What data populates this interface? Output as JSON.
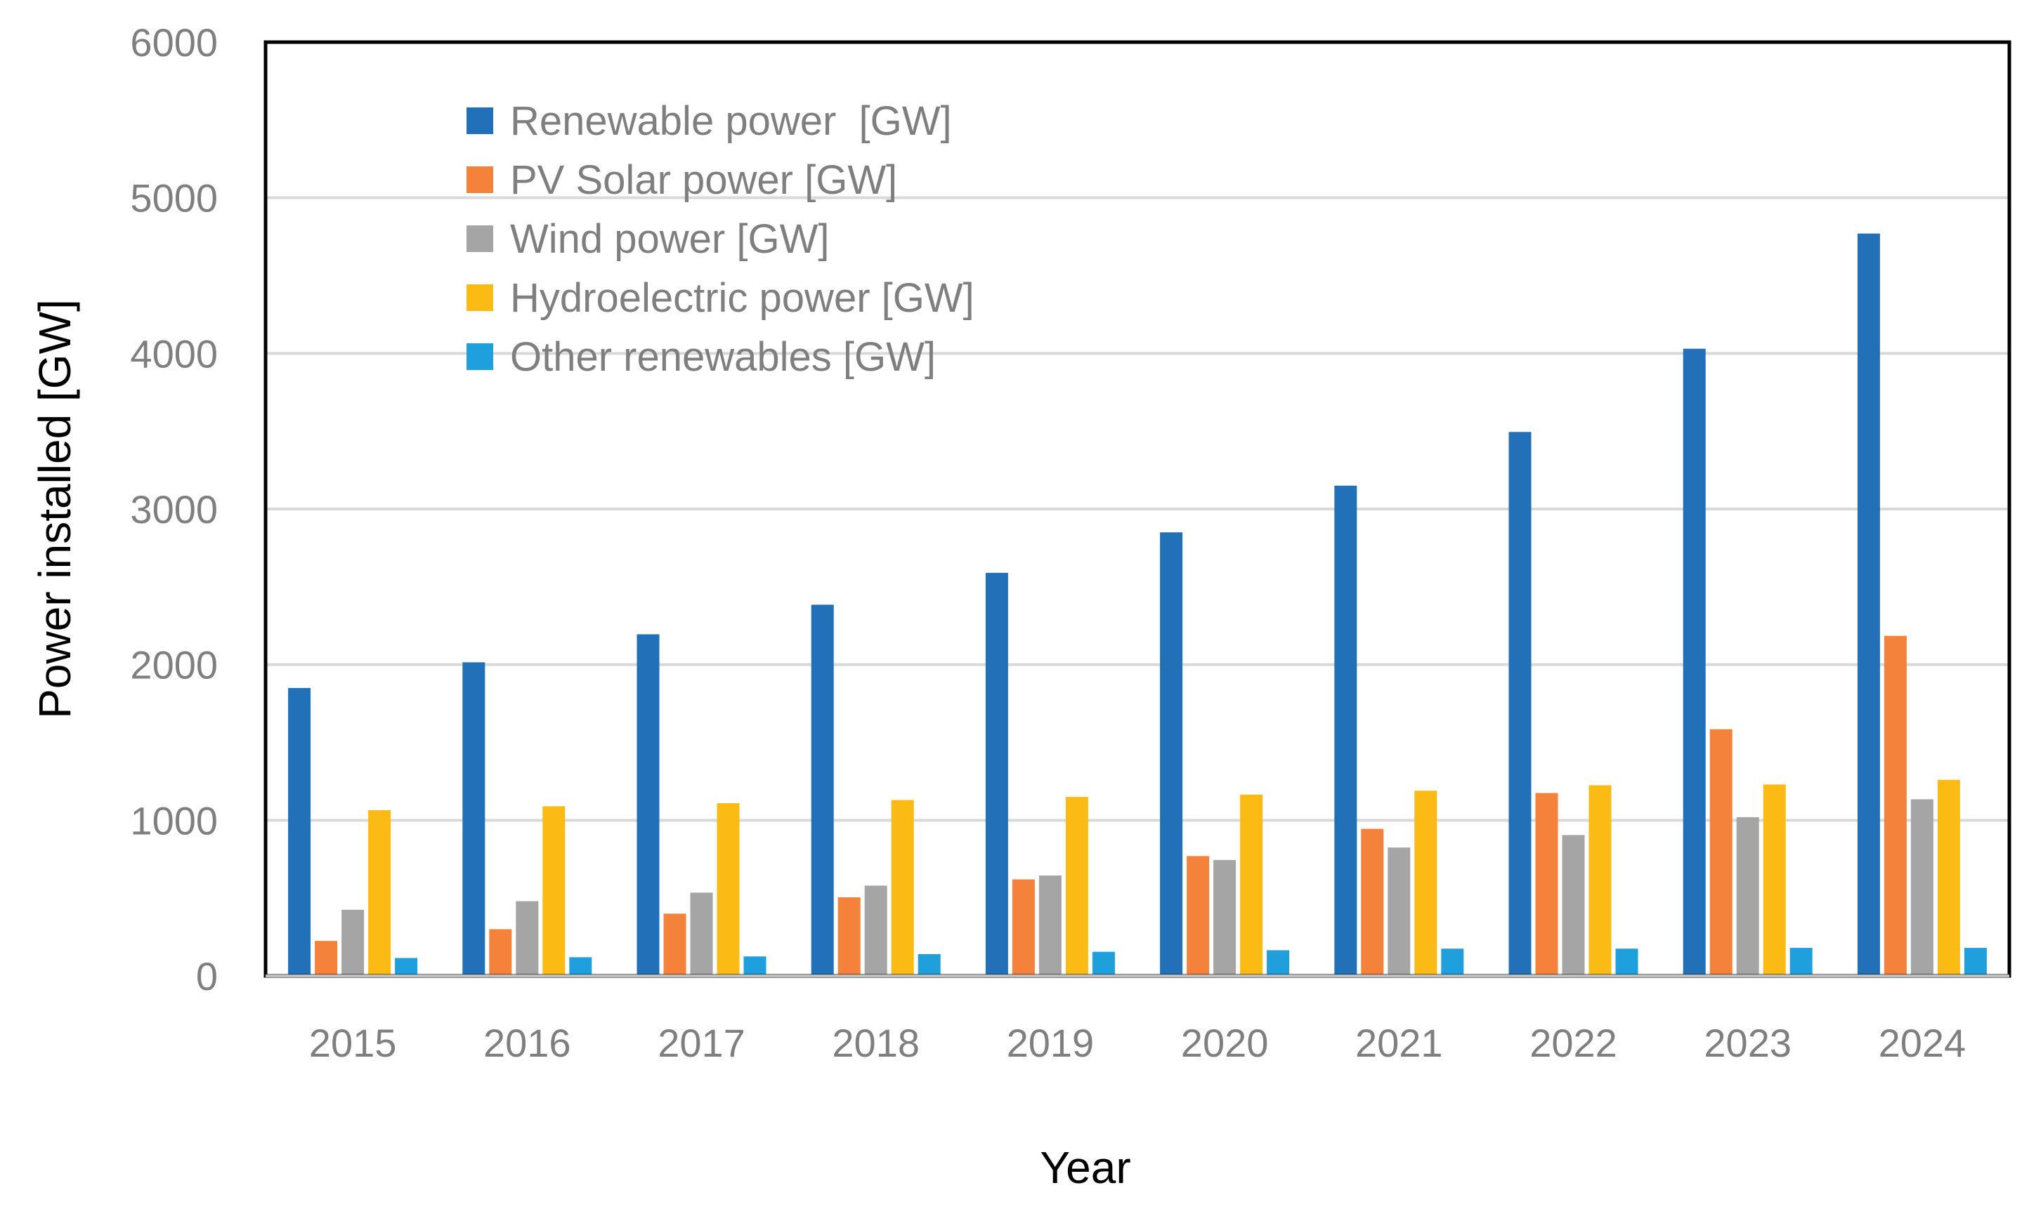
{
  "chart_data": {
    "type": "bar",
    "title": "",
    "xlabel": "Year",
    "ylabel": "Power installed [GW]",
    "ylim": [
      0,
      6000
    ],
    "yticks": [
      "0",
      "1000",
      "2000",
      "3000",
      "4000",
      "5000",
      "6000"
    ],
    "grid": true,
    "legend_position": "top-left",
    "categories": [
      "2015",
      "2016",
      "2017",
      "2018",
      "2019",
      "2020",
      "2021",
      "2022",
      "2023",
      "2024"
    ],
    "series": [
      {
        "name": "Renewable power  [GW]",
        "color": "#2170b8",
        "values": [
          1850,
          2015,
          2195,
          2385,
          2590,
          2850,
          3150,
          3495,
          4030,
          4770
        ]
      },
      {
        "name": "PV Solar power [GW]",
        "color": "#f5823a",
        "values": [
          225,
          300,
          400,
          505,
          620,
          770,
          945,
          1175,
          1585,
          2185
        ]
      },
      {
        "name": "Wind power [GW]",
        "color": "#a5a5a5",
        "values": [
          425,
          480,
          535,
          580,
          645,
          745,
          825,
          905,
          1020,
          1135
        ]
      },
      {
        "name": "Hydroelectric power [GW]",
        "color": "#fbbb14",
        "values": [
          1065,
          1090,
          1110,
          1130,
          1150,
          1165,
          1190,
          1225,
          1230,
          1260
        ]
      },
      {
        "name": "Other renewables [GW]",
        "color": "#1f9fdb",
        "values": [
          115,
          120,
          125,
          140,
          155,
          165,
          175,
          175,
          180,
          180
        ]
      }
    ]
  }
}
